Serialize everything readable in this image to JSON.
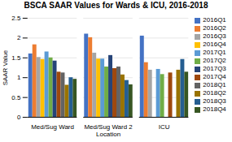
{
  "chart_data": {
    "type": "bar",
    "title": "BSCA SAAR Values for Wards & ICU, 2016-2018",
    "xlabel": "Location",
    "ylabel": "SAAR Value",
    "categories": [
      "Med/Sug Ward",
      "Med/Sug Ward 2",
      "ICU"
    ],
    "series": [
      {
        "name": "2016Q1",
        "color": "#4472C4",
        "values": [
          1.6,
          2.1,
          2.05
        ]
      },
      {
        "name": "2016Q2",
        "color": "#ED7D31",
        "values": [
          1.83,
          2.01,
          1.38
        ]
      },
      {
        "name": "2016Q3",
        "color": "#A5A5A5",
        "values": [
          1.51,
          1.62,
          1.19
        ]
      },
      {
        "name": "2016Q4",
        "color": "#FFC000",
        "values": [
          1.46,
          1.47,
          0
        ]
      },
      {
        "name": "2017Q1",
        "color": "#5B9BD5",
        "values": [
          1.65,
          1.47,
          1.21
        ]
      },
      {
        "name": "2017Q2",
        "color": "#70AD47",
        "values": [
          1.5,
          1.27,
          1.08
        ]
      },
      {
        "name": "2017Q3",
        "color": "#264478",
        "values": [
          1.42,
          1.56,
          0
        ]
      },
      {
        "name": "2017Q4",
        "color": "#9E480E",
        "values": [
          1.14,
          1.23,
          1.12
        ]
      },
      {
        "name": "2018Q1",
        "color": "#636363",
        "values": [
          1.12,
          1.27,
          0
        ]
      },
      {
        "name": "2018Q2",
        "color": "#997300",
        "values": [
          0.81,
          1.07,
          1.19
        ]
      },
      {
        "name": "2018Q3",
        "color": "#255E91",
        "values": [
          1.0,
          0.93,
          1.46
        ]
      },
      {
        "name": "2018Q4",
        "color": "#375623",
        "values": [
          0.96,
          0.82,
          1.14
        ]
      }
    ],
    "ylim": [
      0,
      2.5
    ],
    "yticks": [
      0,
      0.5,
      1,
      1.5,
      2,
      2.5
    ],
    "grid": true,
    "legend": "right"
  }
}
